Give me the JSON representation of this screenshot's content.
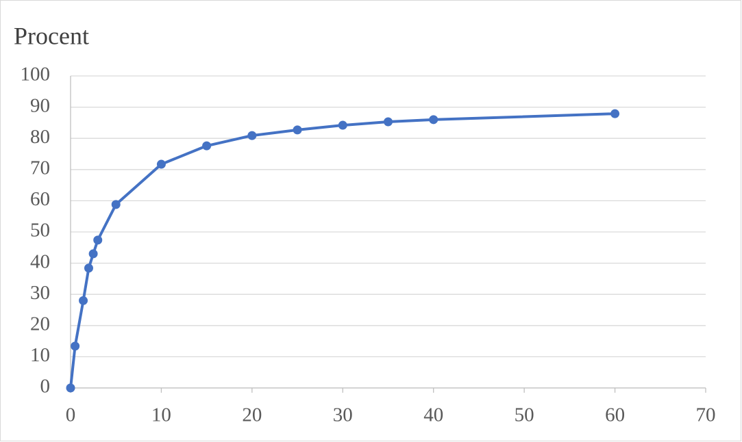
{
  "chart_data": {
    "type": "line",
    "title": "Procent",
    "x": [
      0,
      0.5,
      1.4,
      2,
      2.5,
      3,
      5,
      10,
      15,
      20,
      25,
      30,
      35,
      40,
      60
    ],
    "series": [
      {
        "color": "#4472c4",
        "values": [
          0,
          13.4,
          28,
          38.4,
          43,
          47.4,
          58.8,
          71.7,
          77.6,
          80.9,
          82.7,
          84.2,
          85.3,
          86,
          87.9
        ]
      }
    ],
    "xlim": [
      0,
      70
    ],
    "xticks": [
      0,
      10,
      20,
      30,
      40,
      50,
      60,
      70
    ],
    "ylim": [
      0,
      100
    ],
    "yticks": [
      0,
      10,
      20,
      30,
      40,
      50,
      60,
      70,
      80,
      90,
      100
    ],
    "grid": true,
    "markers": true
  }
}
